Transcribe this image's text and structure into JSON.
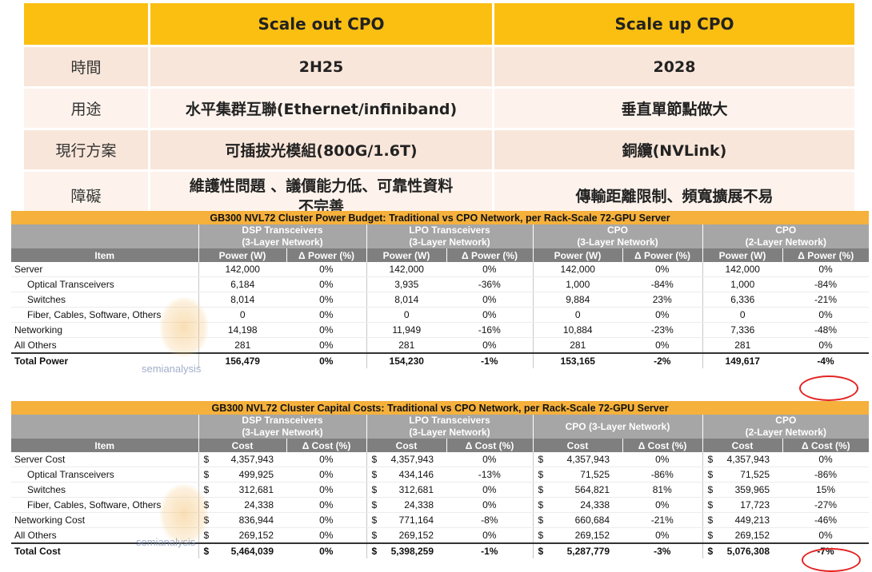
{
  "comparison": {
    "headers": [
      "",
      "Scale out CPO",
      "Scale up CPO"
    ],
    "rows": [
      {
        "label": "時間",
        "out": "2H25",
        "up": "2028"
      },
      {
        "label": "用途",
        "out": "水平集群互聯(Ethernet/infiniband)",
        "up": "垂直單節點做大"
      },
      {
        "label": "現行方案",
        "out": "可插拔光模組(800G/1.6T)",
        "up": "銅纜(NVLink)"
      },
      {
        "label": "障礙",
        "out_line1": "維護性問題 、議價能力低、可靠性資料",
        "out_line2": "不完善",
        "up": "傳輸距離限制、頻寬擴展不易"
      }
    ]
  },
  "power_table": {
    "title": "GB300 NVL72 Cluster Power Budget: Traditional vs CPO Network, per Rack-Scale 72-GPU Server",
    "groups": [
      {
        "line1": "DSP Transceivers",
        "line2": "(3-Layer Network)"
      },
      {
        "line1": "LPO Transceivers",
        "line2": "(3-Layer Network)"
      },
      {
        "line1": "CPO",
        "line2": "(3-Layer Network)"
      },
      {
        "line1": "CPO",
        "line2": "(2-Layer Network)"
      }
    ],
    "item_header": "Item",
    "col_a": "Power (W)",
    "col_b": "Δ Power (%)",
    "rows": [
      {
        "item": "Server",
        "v": [
          "142,000",
          "0%",
          "142,000",
          "0%",
          "142,000",
          "0%",
          "142,000",
          "0%"
        ]
      },
      {
        "item": "Optical Transceivers",
        "v": [
          "6,184",
          "0%",
          "3,935",
          "-36%",
          "1,000",
          "-84%",
          "1,000",
          "-84%"
        ]
      },
      {
        "item": "Switches",
        "v": [
          "8,014",
          "0%",
          "8,014",
          "0%",
          "9,884",
          "23%",
          "6,336",
          "-21%"
        ]
      },
      {
        "item": "Fiber, Cables, Software, Others",
        "v": [
          "0",
          "0%",
          "0",
          "0%",
          "0",
          "0%",
          "0",
          "0%"
        ]
      },
      {
        "item": "Networking",
        "v": [
          "14,198",
          "0%",
          "11,949",
          "-16%",
          "10,884",
          "-23%",
          "7,336",
          "-48%"
        ]
      },
      {
        "item": "All Others",
        "v": [
          "281",
          "0%",
          "281",
          "0%",
          "281",
          "0%",
          "281",
          "0%"
        ]
      },
      {
        "item": "Total Power",
        "v": [
          "156,479",
          "0%",
          "154,230",
          "-1%",
          "153,165",
          "-2%",
          "149,617",
          "-4%"
        ]
      }
    ]
  },
  "cost_table": {
    "title": "GB300 NVL72 Cluster Capital Costs: Traditional vs CPO Network, per Rack-Scale 72-GPU Server",
    "groups": [
      {
        "line1": "DSP Transceivers",
        "line2": "(3-Layer Network)"
      },
      {
        "line1": "LPO Transceivers",
        "line2": "(3-Layer Network)"
      },
      {
        "line1": "CPO (3-Layer Network)",
        "line2": ""
      },
      {
        "line1": "CPO",
        "line2": "(2-Layer Network)"
      }
    ],
    "item_header": "Item",
    "col_a": "Cost",
    "col_b": "Δ Cost (%)",
    "currency": "$",
    "rows": [
      {
        "item": "Server Cost",
        "v": [
          "4,357,943",
          "0%",
          "4,357,943",
          "0%",
          "4,357,943",
          "0%",
          "4,357,943",
          "0%"
        ]
      },
      {
        "item": "Optical Transceivers",
        "v": [
          "499,925",
          "0%",
          "434,146",
          "-13%",
          "71,525",
          "-86%",
          "71,525",
          "-86%"
        ]
      },
      {
        "item": "Switches",
        "v": [
          "312,681",
          "0%",
          "312,681",
          "0%",
          "564,821",
          "81%",
          "359,965",
          "15%"
        ]
      },
      {
        "item": "Fiber, Cables, Software, Others",
        "v": [
          "24,338",
          "0%",
          "24,338",
          "0%",
          "24,338",
          "0%",
          "17,723",
          "-27%"
        ]
      },
      {
        "item": "Networking Cost",
        "v": [
          "836,944",
          "0%",
          "771,164",
          "-8%",
          "660,684",
          "-21%",
          "449,213",
          "-46%"
        ]
      },
      {
        "item": "All Others",
        "v": [
          "269,152",
          "0%",
          "269,152",
          "0%",
          "269,152",
          "0%",
          "269,152",
          "0%"
        ]
      },
      {
        "item": "Total Cost",
        "v": [
          "5,464,039",
          "0%",
          "5,398,259",
          "-1%",
          "5,287,779",
          "-3%",
          "5,076,308",
          "-7%"
        ]
      }
    ]
  },
  "watermark": {
    "text": "semianalysis"
  },
  "colors": {
    "header_yellow": "#fbbf12",
    "row_tint": "#f9e6da",
    "title_orange": "#f5b13c",
    "highlight_red": "#e32424"
  }
}
